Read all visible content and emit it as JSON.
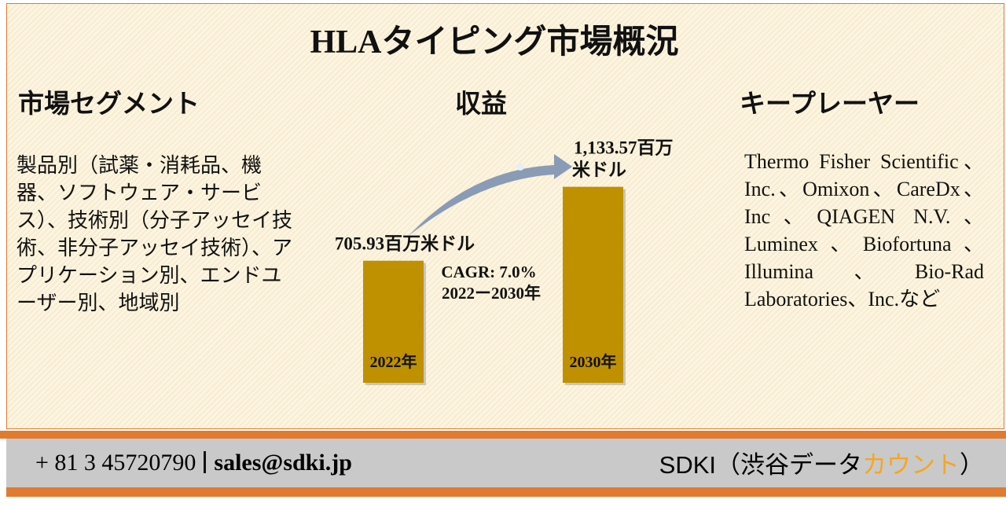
{
  "header": {
    "title": "HLAタイピング市場概況"
  },
  "segments": {
    "heading": "市場セグメント",
    "text": "製品別（試薬・消耗品、機器、ソフトウェア・サービス）、技術別（分子アッセイ技術、非分子アッセイ技術）、アプリケーション別、エンドユーザー別、地域別"
  },
  "revenue": {
    "heading": "収益",
    "bars": [
      {
        "year": "2022年",
        "value": 705.93,
        "label": "705.93百万米ドル"
      },
      {
        "year": "2030年",
        "value": 1133.57,
        "label": "1,133.57百万米ドル"
      }
    ],
    "cagr": "CAGR: 7.0%",
    "period": "2022ー2030年",
    "color": "#bf9000"
  },
  "players": {
    "heading": "キープレーヤー",
    "text": "Thermo Fisher Scientific、Inc.、Omixon、CareDx、Inc、QIAGEN N.V.、Luminex、Biofortuna、Illumina、Bio-Rad Laboratories、Inc.など"
  },
  "footer": {
    "phone": "+ 81 3 45720790",
    "email": "sales@sdki.jp",
    "brand": [
      "SDKI（渋谷データ",
      "カウント",
      "）"
    ]
  }
}
